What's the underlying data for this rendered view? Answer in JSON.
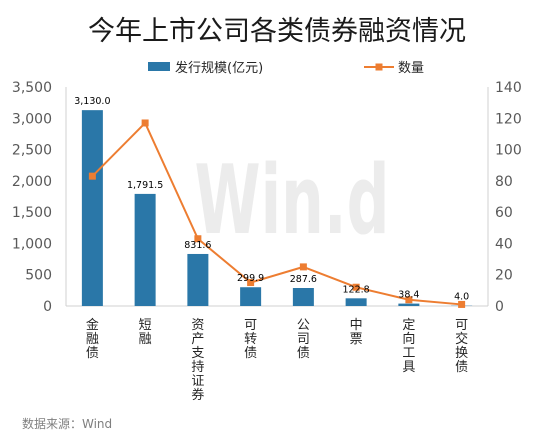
{
  "source": "数据来源：Wind",
  "watermark": "Win.d",
  "chart_data": {
    "type": "bar",
    "title": "今年上市公司各类债券融资情况",
    "categories": [
      "金融债",
      "短融",
      "资产支持证券",
      "可转债",
      "公司债",
      "中票",
      "定向工具",
      "可交换债"
    ],
    "series": [
      {
        "name": "发行规模(亿元)",
        "type": "bar",
        "axis": "left",
        "color": "#2A77A8",
        "values": [
          3130.0,
          1791.5,
          831.6,
          299.9,
          287.6,
          122.8,
          38.4,
          4.0
        ],
        "data_labels": [
          "3,130.0",
          "1,791.5",
          "831.6",
          "299.9",
          "287.6",
          "122.8",
          "38.4",
          "4.0"
        ]
      },
      {
        "name": "数量",
        "type": "line",
        "axis": "right",
        "color": "#ED7D31",
        "marker": "square",
        "values": [
          83,
          117,
          43,
          15,
          25,
          12,
          4,
          1
        ]
      }
    ],
    "ylim": [
      0,
      3500
    ],
    "y_tick_labels": [
      "0",
      "500",
      "1,000",
      "1,500",
      "2,000",
      "2,500",
      "3,000",
      "3,500"
    ],
    "y2lim": [
      0,
      140
    ],
    "y2_tick_labels": [
      "0",
      "20",
      "40",
      "60",
      "80",
      "100",
      "120",
      "140"
    ],
    "legend_position": "top",
    "grid": false
  }
}
